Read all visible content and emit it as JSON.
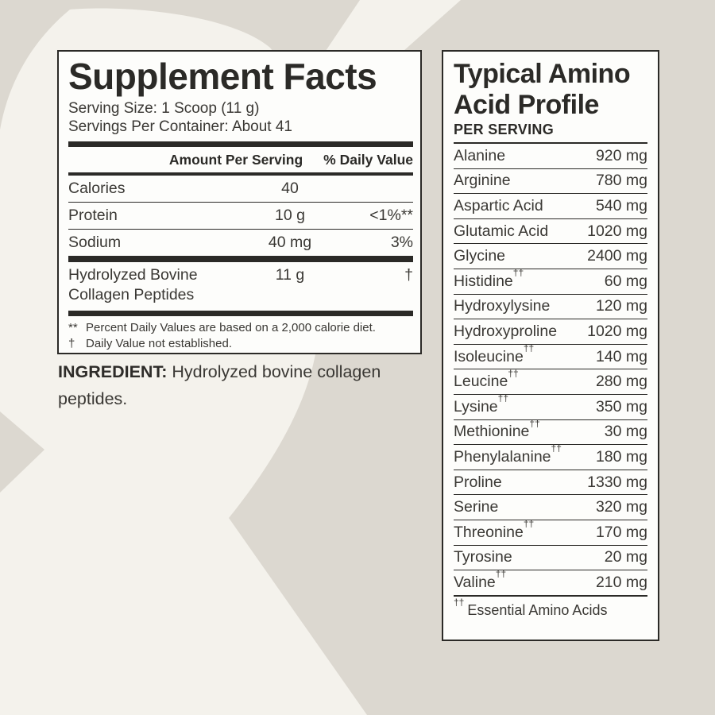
{
  "colors": {
    "page_background": "#dcd8d0",
    "watermark": "#f4f2ec",
    "panel_background": "#fdfdfb",
    "ink": "#2b2a27"
  },
  "supplement_facts": {
    "title": "Supplement Facts",
    "serving_size": "Serving Size: 1 Scoop (11 g)",
    "servings_per_container": "Servings Per Container: About 41",
    "columns": {
      "amount": "Amount Per Serving",
      "daily_value": "% Daily Value"
    },
    "rows": [
      {
        "name": "Calories",
        "amount": "40",
        "dv": ""
      },
      {
        "name": "Protein",
        "amount": "10 g",
        "dv": "<1%**"
      },
      {
        "name": "Sodium",
        "amount": "40 mg",
        "dv": "3%"
      },
      {
        "name": "Hydrolyzed Bovine Collagen Peptides",
        "amount": "11 g",
        "dv": "†"
      }
    ],
    "footnotes": [
      {
        "marker": "**",
        "text": "Percent Daily Values are based on a 2,000 calorie diet."
      },
      {
        "marker": "†",
        "text": "Daily Value not established."
      }
    ]
  },
  "ingredient": {
    "label": "INGREDIENT:",
    "text": " Hydrolyzed bovine collagen peptides."
  },
  "amino_profile": {
    "title": "Typical Amino Acid Profile",
    "subtitle": "PER SERVING",
    "essential_marker": "††",
    "rows": [
      {
        "name": "Alanine",
        "essential": false,
        "amount": "920 mg"
      },
      {
        "name": "Arginine",
        "essential": false,
        "amount": "780 mg"
      },
      {
        "name": "Aspartic Acid",
        "essential": false,
        "amount": "540 mg"
      },
      {
        "name": "Glutamic Acid",
        "essential": false,
        "amount": "1020 mg"
      },
      {
        "name": "Glycine",
        "essential": false,
        "amount": "2400 mg"
      },
      {
        "name": "Histidine",
        "essential": true,
        "amount": "60 mg"
      },
      {
        "name": "Hydroxylysine",
        "essential": false,
        "amount": "120 mg"
      },
      {
        "name": "Hydroxyproline",
        "essential": false,
        "amount": "1020 mg"
      },
      {
        "name": "Isoleucine",
        "essential": true,
        "amount": "140 mg"
      },
      {
        "name": "Leucine",
        "essential": true,
        "amount": "280 mg"
      },
      {
        "name": "Lysine",
        "essential": true,
        "amount": "350 mg"
      },
      {
        "name": "Methionine",
        "essential": true,
        "amount": "30 mg"
      },
      {
        "name": "Phenylalanine",
        "essential": true,
        "amount": "180 mg"
      },
      {
        "name": "Proline",
        "essential": false,
        "amount": "1330 mg"
      },
      {
        "name": "Serine",
        "essential": false,
        "amount": "320 mg"
      },
      {
        "name": "Threonine",
        "essential": true,
        "amount": "170 mg"
      },
      {
        "name": "Tyrosine",
        "essential": false,
        "amount": "20 mg"
      },
      {
        "name": "Valine",
        "essential": true,
        "amount": "210 mg"
      }
    ],
    "footnote": {
      "marker": "††",
      "text": "Essential Amino Acids"
    }
  }
}
